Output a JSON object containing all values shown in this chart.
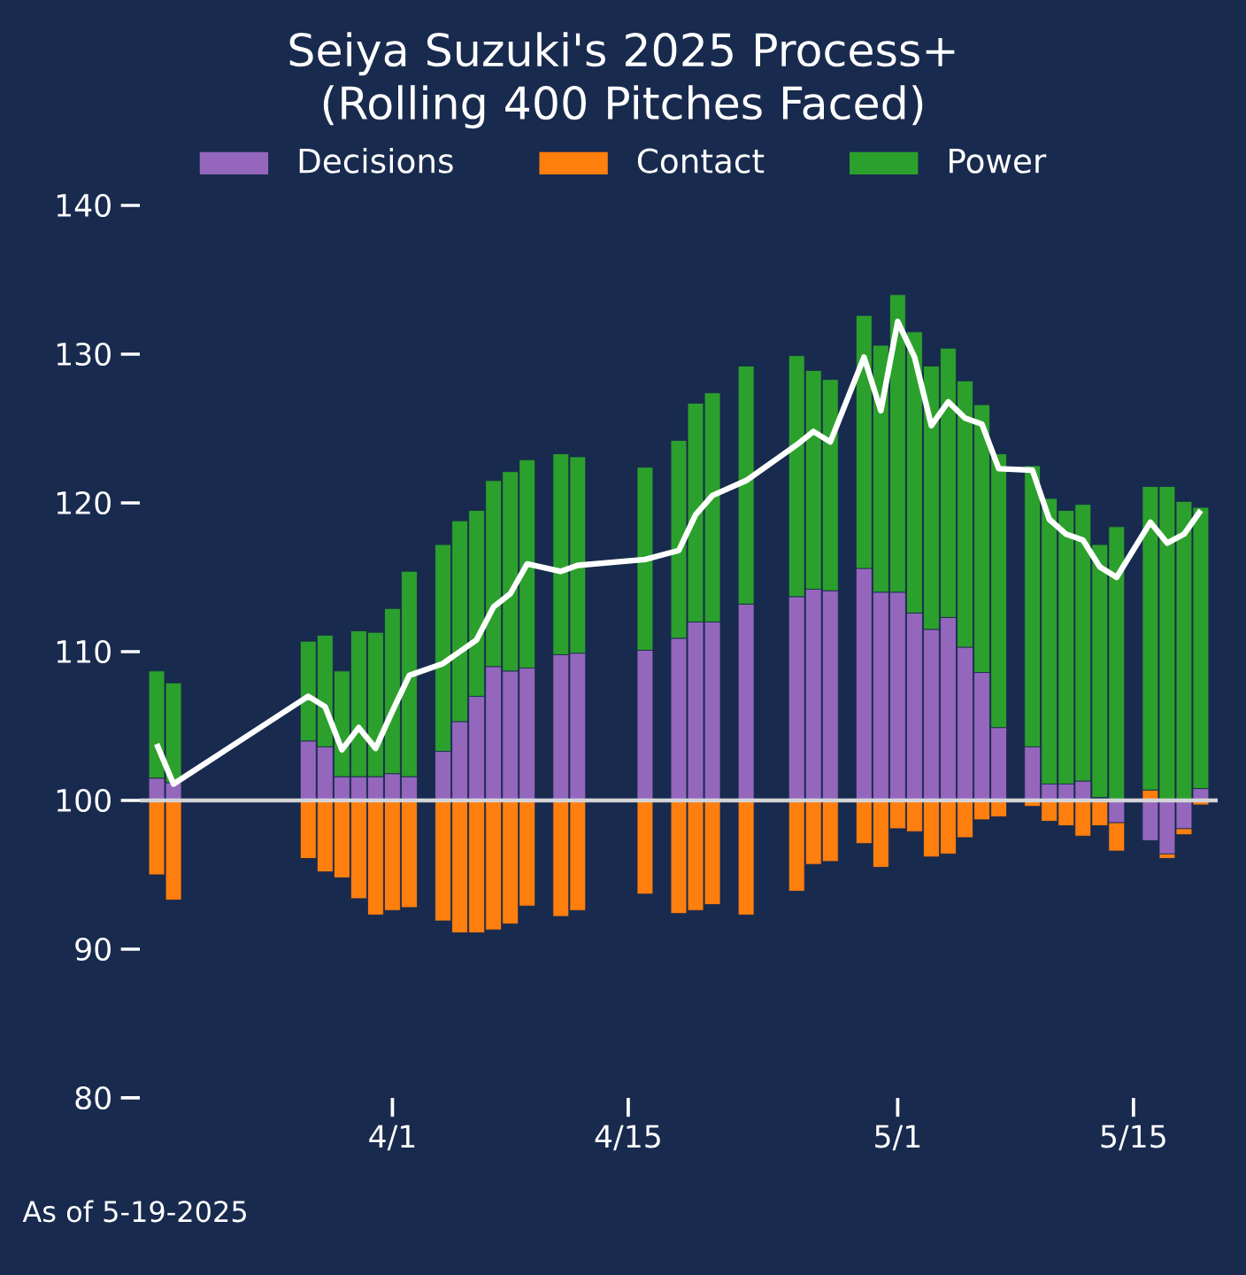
{
  "chart_data": {
    "type": "bar",
    "title": "Seiya Suzuki's 2025 Process+ (Rolling 400 Pitches Faced)",
    "x": [
      "2025-03-18",
      "2025-03-19",
      "2025-03-27",
      "2025-03-28",
      "2025-03-29",
      "2025-03-30",
      "2025-03-31",
      "2025-04-01",
      "2025-04-02",
      "2025-04-04",
      "2025-04-05",
      "2025-04-06",
      "2025-04-07",
      "2025-04-08",
      "2025-04-09",
      "2025-04-11",
      "2025-04-12",
      "2025-04-16",
      "2025-04-18",
      "2025-04-19",
      "2025-04-20",
      "2025-04-22",
      "2025-04-25",
      "2025-04-26",
      "2025-04-27",
      "2025-04-29",
      "2025-04-30",
      "2025-05-01",
      "2025-05-02",
      "2025-05-03",
      "2025-05-04",
      "2025-05-05",
      "2025-05-06",
      "2025-05-07",
      "2025-05-09",
      "2025-05-10",
      "2025-05-11",
      "2025-05-12",
      "2025-05-13",
      "2025-05-14",
      "2025-05-16",
      "2025-05-17",
      "2025-05-18",
      "2025-05-19"
    ],
    "series": [
      {
        "name": "Decisions",
        "color": "#9467bd",
        "base": [
          100,
          100,
          100,
          100,
          100,
          100,
          100,
          100,
          100,
          100,
          100,
          100,
          100,
          100,
          100,
          100,
          100,
          100,
          100,
          100,
          100,
          100,
          100,
          100,
          100,
          100,
          100,
          100,
          100,
          100,
          100,
          100,
          100,
          100,
          100,
          100,
          100,
          100,
          null,
          100,
          100,
          100,
          100,
          100
        ],
        "values": [
          1.5,
          1.2,
          4.0,
          3.6,
          1.6,
          1.6,
          1.6,
          1.8,
          1.6,
          3.3,
          5.3,
          7.0,
          9.0,
          8.7,
          8.9,
          9.8,
          9.9,
          10.1,
          10.9,
          12.0,
          12.0,
          13.2,
          13.7,
          14.2,
          14.1,
          15.6,
          14.0,
          14.0,
          12.6,
          11.5,
          12.3,
          10.3,
          8.6,
          4.9,
          3.6,
          1.1,
          1.1,
          1.3,
          null,
          -1.5,
          -2.7,
          -3.6,
          -1.9,
          0.8
        ]
      },
      {
        "name": "Contact",
        "color": "#ff7f0e",
        "base": [
          100,
          100,
          100,
          100,
          100,
          100,
          100,
          100,
          100,
          100,
          100,
          100,
          100,
          100,
          100,
          100,
          100,
          100,
          100,
          100,
          100,
          100,
          100,
          100,
          100,
          100,
          100,
          100,
          100,
          100,
          100,
          100,
          100,
          100,
          100,
          100,
          100,
          100,
          100,
          98.5,
          100,
          96.4,
          98.1,
          100
        ],
        "values": [
          -5.0,
          -6.7,
          -3.9,
          -4.8,
          -5.2,
          -6.6,
          -7.7,
          -7.4,
          -7.2,
          -8.1,
          -8.9,
          -8.9,
          -8.7,
          -8.3,
          -7.1,
          -7.8,
          -7.4,
          -6.3,
          -7.6,
          -7.4,
          -7.0,
          -7.7,
          -6.1,
          -4.3,
          -4.1,
          -2.9,
          -4.5,
          -1.9,
          -2.1,
          -3.8,
          -3.6,
          -2.5,
          -1.3,
          -1.1,
          -0.4,
          -1.4,
          -1.7,
          -2.4,
          -1.7,
          -1.9,
          0.7,
          -0.3,
          -0.4,
          -0.3
        ]
      },
      {
        "name": "Power",
        "color": "#2ca02c",
        "base": [
          101.5,
          101.2,
          104.0,
          103.6,
          101.6,
          101.6,
          101.6,
          101.8,
          101.6,
          103.3,
          105.3,
          107.0,
          109.0,
          108.7,
          108.9,
          109.8,
          109.9,
          110.1,
          110.9,
          112.0,
          112.0,
          113.2,
          113.7,
          114.2,
          114.1,
          115.6,
          114.0,
          114.0,
          112.6,
          111.5,
          112.3,
          110.3,
          108.6,
          104.9,
          103.6,
          101.1,
          101.1,
          101.3,
          100.2,
          100,
          100.7,
          100,
          100,
          100.8
        ],
        "values": [
          7.2,
          6.7,
          6.7,
          7.5,
          7.1,
          9.8,
          9.7,
          11.1,
          13.8,
          13.9,
          13.5,
          12.5,
          12.5,
          13.4,
          14.0,
          13.5,
          13.2,
          12.3,
          13.3,
          14.7,
          15.4,
          16.0,
          16.2,
          14.7,
          14.2,
          17.0,
          16.6,
          20.0,
          18.9,
          17.7,
          18.1,
          17.9,
          18.0,
          18.4,
          18.9,
          19.2,
          18.4,
          18.6,
          17.0,
          18.4,
          20.4,
          21.1,
          20.1,
          18.9
        ]
      },
      {
        "type": "line",
        "color": "#ffffff",
        "values": [
          103.8,
          101.1,
          107.0,
          106.3,
          103.4,
          104.9,
          103.5,
          106.0,
          108.4,
          109.2,
          110.0,
          110.8,
          113.0,
          113.9,
          115.9,
          115.4,
          115.8,
          116.2,
          116.8,
          119.2,
          120.5,
          121.5,
          123.9,
          124.8,
          124.1,
          129.8,
          126.2,
          132.2,
          129.8,
          125.2,
          126.8,
          125.7,
          125.3,
          122.3,
          122.2,
          118.9,
          117.9,
          117.5,
          115.7,
          115.0,
          118.7,
          117.3,
          117.9,
          119.5
        ]
      }
    ],
    "xlim": [
      "2025-03-17",
      "2025-05-20"
    ],
    "xticks": [
      {
        "value": "2025-04-01",
        "label": "4/1"
      },
      {
        "value": "2025-04-15",
        "label": "4/15"
      },
      {
        "value": "2025-05-01",
        "label": "5/1"
      },
      {
        "value": "2025-05-15",
        "label": "5/15"
      }
    ],
    "ylim": [
      80,
      140
    ],
    "yticks": [
      80,
      90,
      100,
      110,
      120,
      130,
      140
    ],
    "ref_lines": [
      {
        "axis": "y",
        "value": 100,
        "color": "#d4d4d8"
      }
    ],
    "legend": "top",
    "annotations": [
      "As of 5-19-2025"
    ]
  }
}
